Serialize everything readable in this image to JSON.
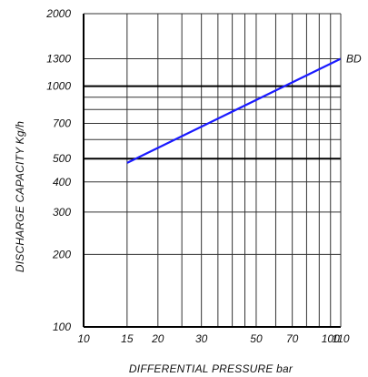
{
  "chart_data": {
    "type": "line",
    "xlabel": "DIFFERENTIAL PRESSURE  bar",
    "ylabel": "DISCHARGE CAPACITY   Kg/h",
    "x_scale": "log",
    "y_scale": "log",
    "xlim": [
      10,
      110
    ],
    "ylim": [
      100,
      2000
    ],
    "x_ticks": [
      10,
      15,
      20,
      30,
      50,
      70,
      100,
      110
    ],
    "x_tick_labels": [
      "10",
      "15",
      "20",
      "30",
      "50",
      "70",
      "100",
      "110"
    ],
    "x_gridlines": [
      10,
      15,
      20,
      25,
      30,
      35,
      40,
      45,
      50,
      60,
      70,
      80,
      90,
      100,
      110
    ],
    "y_ticks": [
      100,
      200,
      300,
      400,
      500,
      700,
      1000,
      1300,
      2000
    ],
    "y_tick_labels": [
      "100",
      "200",
      "300",
      "400",
      "500",
      "700",
      "1000",
      "1300",
      "2000"
    ],
    "y_gridlines_major": [
      500,
      1000
    ],
    "y_gridlines_minor": [
      100,
      200,
      300,
      400,
      600,
      700,
      800,
      900,
      1300,
      2000
    ],
    "grid": true,
    "series": [
      {
        "name": "BD",
        "color": "#1a1aff",
        "x": [
          15,
          110
        ],
        "y": [
          480,
          1300
        ]
      }
    ]
  }
}
